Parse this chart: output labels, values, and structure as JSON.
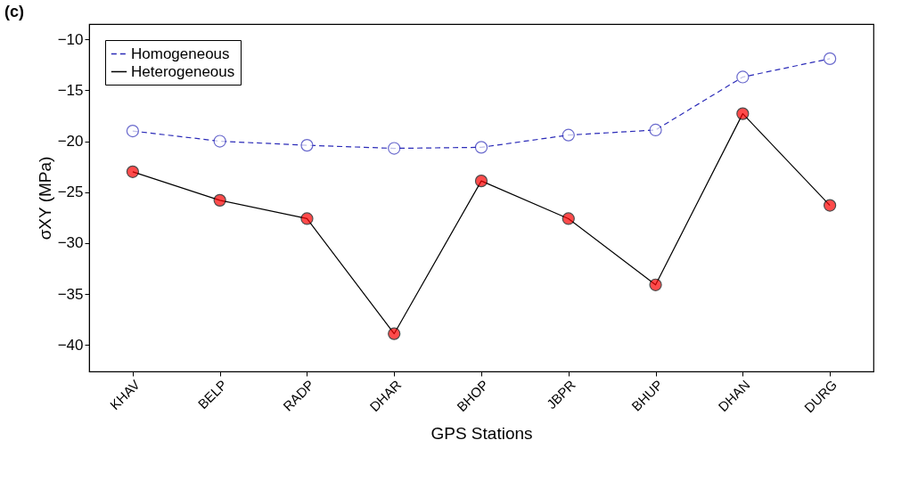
{
  "chart_data": {
    "type": "line",
    "annotations": [
      "(c)"
    ],
    "xlabel": "GPS Stations",
    "ylabel": "σXY (MPa)",
    "categories": [
      "KHAV",
      "BELP",
      "RADP",
      "DHAR",
      "BHOP",
      "JBPR",
      "BHUP",
      "DHAN",
      "DURG"
    ],
    "series": [
      {
        "name": "Homogeneous",
        "color": "#2b2bb8",
        "line_style": "dashed",
        "values": [
          -19.0,
          -20.0,
          -20.4,
          -20.7,
          -20.6,
          -19.4,
          -18.9,
          -13.7,
          -11.9
        ]
      },
      {
        "name": "Heterogeneous",
        "color": "#000000",
        "line_style": "solid",
        "colors": [
          "#ff0000",
          "#ff0000",
          "#ff0000",
          "#ff0000",
          "#ff0000",
          "#ff0000",
          "#ff0000",
          "#ff0000",
          "#ff0000"
        ],
        "values": [
          -23.0,
          -25.8,
          -27.6,
          -38.9,
          -23.9,
          -27.6,
          -34.1,
          -17.3,
          -26.3
        ]
      }
    ],
    "ylim": [
      -42.6,
      -8.5
    ],
    "yticks": [
      -40,
      -35,
      -30,
      -25,
      -20,
      -15,
      -10
    ],
    "grid": false,
    "legend": "top left",
    "marker": "circle"
  }
}
